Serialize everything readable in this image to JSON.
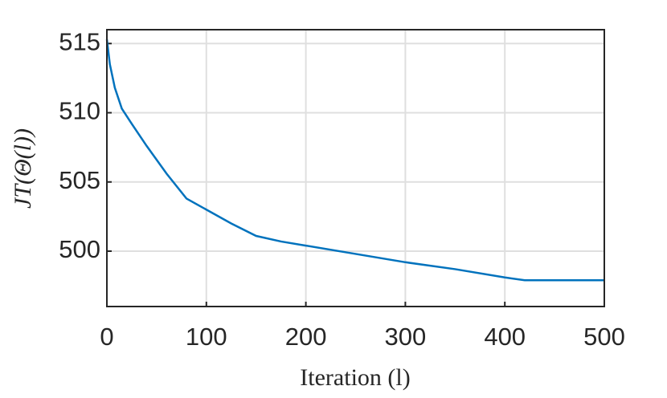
{
  "chart_data": {
    "type": "line",
    "xlabel": "Iteration (l)",
    "ylabel": "JT(Θ(l))",
    "x": [
      0,
      3,
      8,
      15,
      25,
      40,
      60,
      80,
      100,
      125,
      150,
      175,
      200,
      250,
      300,
      350,
      400,
      420,
      440,
      500
    ],
    "series": [
      {
        "color": "#0072bd",
        "values": [
          515.3,
          513.5,
          511.8,
          510.3,
          509.2,
          507.6,
          505.6,
          503.8,
          503.0,
          502.0,
          501.1,
          500.7,
          500.4,
          499.8,
          499.2,
          498.7,
          498.1,
          497.9,
          497.9,
          497.9
        ]
      }
    ],
    "xlim": [
      0,
      500
    ],
    "xticks": [
      0,
      100,
      200,
      300,
      400,
      500
    ],
    "ylim": [
      496,
      516
    ],
    "yticks": [
      500,
      505,
      510,
      515
    ],
    "grid": true
  }
}
